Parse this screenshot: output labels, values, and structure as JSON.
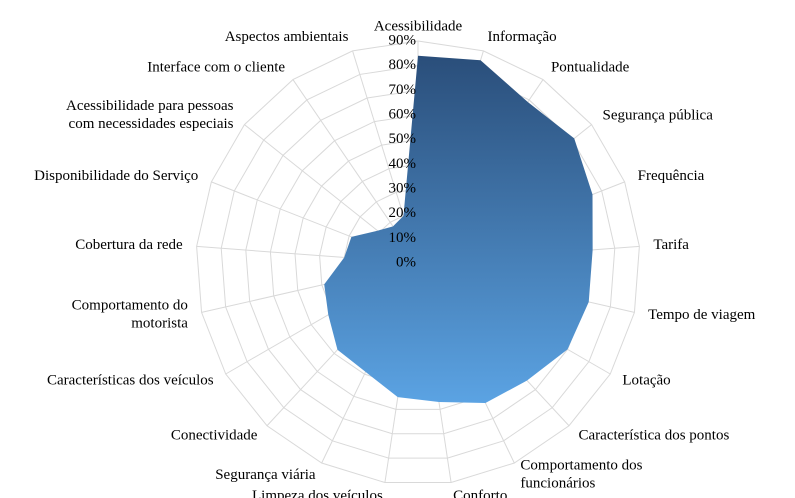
{
  "chart_data": {
    "type": "radar",
    "categories": [
      "Acessibilidade",
      "Informação",
      "Pontualidade",
      "Segurança pública",
      "Frequência",
      "Tarifa",
      "Tempo de viagem",
      "Lotação",
      "Característica dos pontos",
      "Comportamento dos\nfuncionários",
      "Conforto",
      "Limpeza dos veículos",
      "Segurança viária",
      "Conectividade",
      "Características dos veículos",
      "Comportamento do\nmotorista",
      "Cobertura da rede",
      "Disponibilidade do Serviço",
      "Acessibilidade para pessoas\ncom necessidades especiais",
      "Interface com o cliente",
      "Aspectos ambientais"
    ],
    "values": [
      84,
      86,
      79,
      81,
      76,
      71,
      71,
      70,
      65,
      63,
      57,
      55,
      49,
      48,
      42,
      39,
      30,
      29,
      21,
      18,
      20
    ],
    "color_top": "#2a4e7a",
    "color_bottom": "#5ba3e3",
    "ylim": [
      0,
      90
    ],
    "yticks": [
      {
        "value": 0,
        "label": "0%"
      },
      {
        "value": 10,
        "label": "10%"
      },
      {
        "value": 20,
        "label": "20%"
      },
      {
        "value": 30,
        "label": "30%"
      },
      {
        "value": 40,
        "label": "40%"
      },
      {
        "value": 50,
        "label": "50%"
      },
      {
        "value": 60,
        "label": "60%"
      },
      {
        "value": 70,
        "label": "70%"
      },
      {
        "value": 80,
        "label": "80%"
      },
      {
        "value": 90,
        "label": "90%"
      }
    ],
    "grid": true
  }
}
